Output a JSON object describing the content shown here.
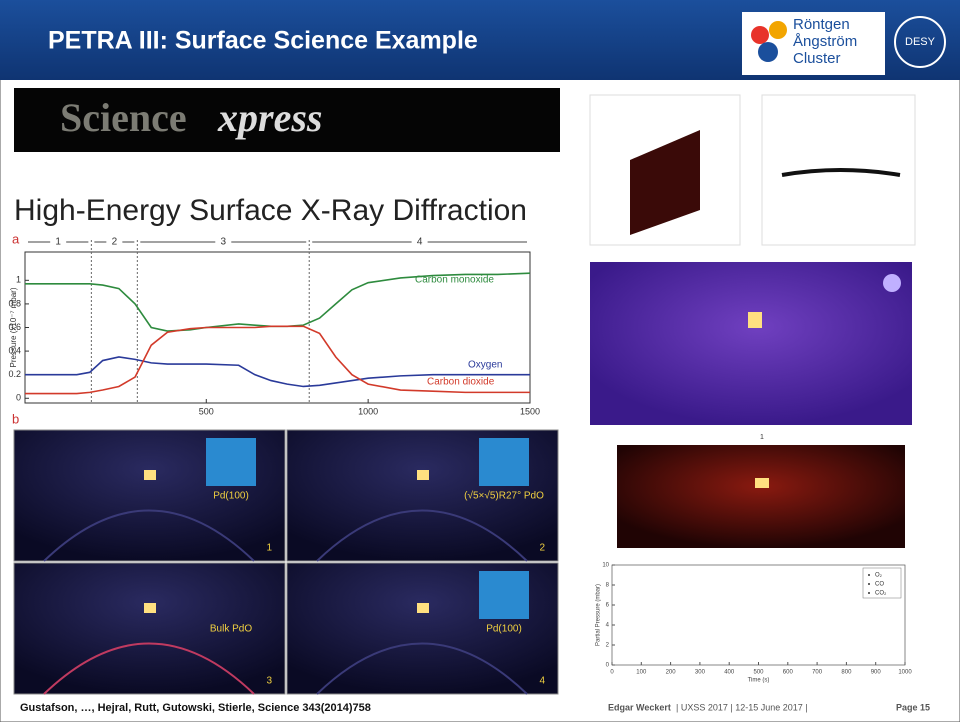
{
  "header": {
    "title": "PETRA III: Surface Science Example",
    "logo_lines": [
      "Röntgen",
      "Ångström",
      "Cluster"
    ],
    "desy": "DESY"
  },
  "banner": {
    "word": "Science",
    "suffix": "xpress"
  },
  "heading": "High-Energy Surface X-Ray Diffraction",
  "panel_a_label": "a",
  "panel_b_label": "b",
  "chart_data": [
    {
      "type": "line",
      "ylabel": "Pressure (x10⁻⁷ mbar)",
      "x": [
        -60,
        0,
        100,
        140,
        180,
        230,
        280,
        330,
        380,
        450,
        500,
        600,
        650,
        700,
        750,
        800,
        850,
        900,
        950,
        1000,
        1100,
        1200,
        1300,
        1400,
        1500
      ],
      "xlim": [
        -60,
        1500
      ],
      "xticks": [
        500,
        1000,
        1500
      ],
      "ylim": [
        -0.04,
        1.24
      ],
      "yticks": [
        0,
        0.2,
        0.4,
        0.6,
        0.8,
        1
      ],
      "phase_labels": [
        "1",
        "2",
        "3",
        "4"
      ],
      "phase_boundaries": [
        145,
        287,
        818
      ],
      "series": [
        {
          "name": "Carbon monoxide",
          "color": "#2e8b3e",
          "values": [
            0.97,
            0.97,
            0.97,
            0.97,
            0.96,
            0.93,
            0.8,
            0.6,
            0.57,
            0.58,
            0.6,
            0.63,
            0.62,
            0.61,
            0.61,
            0.62,
            0.68,
            0.8,
            0.92,
            0.98,
            1.02,
            1.04,
            1.05,
            1.05,
            1.06
          ]
        },
        {
          "name": "Oxygen",
          "color": "#2a3a9a",
          "values": [
            0.2,
            0.2,
            0.2,
            0.22,
            0.32,
            0.35,
            0.33,
            0.3,
            0.29,
            0.29,
            0.29,
            0.28,
            0.2,
            0.15,
            0.12,
            0.1,
            0.11,
            0.13,
            0.15,
            0.17,
            0.19,
            0.2,
            0.2,
            0.2,
            0.2
          ]
        },
        {
          "name": "Carbon dioxide",
          "color": "#d23a2a",
          "values": [
            0.04,
            0.04,
            0.04,
            0.05,
            0.07,
            0.1,
            0.18,
            0.45,
            0.56,
            0.59,
            0.6,
            0.6,
            0.6,
            0.61,
            0.61,
            0.61,
            0.55,
            0.35,
            0.2,
            0.12,
            0.07,
            0.06,
            0.05,
            0.05,
            0.05
          ]
        }
      ]
    },
    {
      "type": "empty",
      "xlabel": "Time (s)",
      "ylabel": "Partial Pressure (mbar)",
      "xlim": [
        0,
        1000
      ],
      "xticks": [
        0,
        100,
        200,
        300,
        400,
        500,
        600,
        700,
        800,
        900,
        1000
      ],
      "ylim": [
        0,
        10
      ],
      "yticks": [
        0,
        2,
        4,
        6,
        8,
        10
      ],
      "legend": [
        "O₂",
        "CO",
        "CO₂"
      ]
    }
  ],
  "panels": [
    {
      "label": "Pd(100)",
      "number": "1"
    },
    {
      "label": "(√5×√5)R27° PdO",
      "number": "2"
    },
    {
      "label": "Bulk PdO",
      "number": "3"
    },
    {
      "label": "Pd(100)",
      "number": "4"
    }
  ],
  "frame_label": "1",
  "footer": {
    "citation": "Gustafson, …, Hejral,  Rutt, Gutowski, Stierle, Science 343(2014)758",
    "author": "Edgar Weckert",
    "event": "| UXSS 2017 | 12-15 June 2017 |",
    "page": "Page 15"
  }
}
